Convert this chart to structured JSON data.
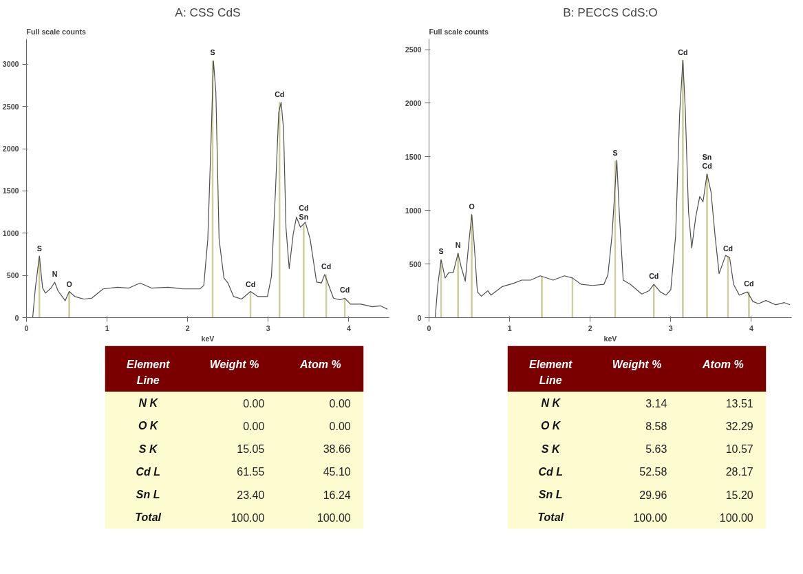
{
  "chart_data": [
    {
      "type": "line",
      "title": "A: CSS CdS",
      "ylabel": "Full scale counts",
      "xlabel": "keV",
      "xlim": [
        0,
        4.5
      ],
      "ylim": [
        0,
        3300
      ],
      "xticks": [
        0,
        1,
        2,
        3,
        4
      ],
      "yticks": [
        0,
        500,
        1000,
        1500,
        2000,
        2500,
        3000
      ],
      "grid": false,
      "series": [
        {
          "type": "bar",
          "color": "#cccc99",
          "x": [
            0.16,
            0.53,
            2.31,
            2.78,
            3.14,
            3.44,
            3.72,
            3.95
          ],
          "values": [
            720,
            300,
            3040,
            300,
            2550,
            1100,
            510,
            230
          ]
        },
        {
          "type": "line",
          "color": "#4d4d4d",
          "x": [
            0,
            0.077,
            0.11,
            0.16,
            0.2,
            0.235,
            0.305,
            0.35,
            0.39,
            0.48,
            0.53,
            0.6,
            0.71,
            0.81,
            0.95,
            1.13,
            1.27,
            1.41,
            1.55,
            1.76,
            1.94,
            2.15,
            2.2,
            2.25,
            2.29,
            2.32,
            2.35,
            2.39,
            2.45,
            2.5,
            2.57,
            2.67,
            2.78,
            2.87,
            2.99,
            3.04,
            3.09,
            3.13,
            3.16,
            3.19,
            3.22,
            3.26,
            3.31,
            3.35,
            3.4,
            3.46,
            3.52,
            3.6,
            3.66,
            3.7,
            3.74,
            3.81,
            3.89,
            3.95,
            4.02,
            4.15,
            4.29,
            4.39,
            4.48
          ],
          "values": [
            0,
            0,
            350,
            730,
            350,
            290,
            350,
            420,
            320,
            200,
            310,
            250,
            220,
            230,
            340,
            360,
            350,
            410,
            350,
            360,
            340,
            340,
            380,
            930,
            2090,
            3040,
            2670,
            930,
            470,
            410,
            250,
            220,
            310,
            250,
            250,
            490,
            1510,
            2430,
            2550,
            2230,
            1070,
            580,
            990,
            1190,
            1070,
            1130,
            930,
            420,
            410,
            510,
            410,
            230,
            210,
            230,
            160,
            160,
            130,
            140,
            100
          ]
        }
      ],
      "annotations": [
        {
          "text": "S",
          "x": 0.16,
          "y": 720
        },
        {
          "text": "N",
          "x": 0.35,
          "y": 420
        },
        {
          "text": "O",
          "x": 0.53,
          "y": 300
        },
        {
          "text": "S",
          "x": 2.31,
          "y": 3040
        },
        {
          "text": "Cd",
          "x": 2.78,
          "y": 300
        },
        {
          "text": "Cd",
          "x": 3.14,
          "y": 2550
        },
        {
          "text": "Cd",
          "x": 3.44,
          "y": 1100
        },
        {
          "text": "Sn",
          "x": 3.44,
          "y": 1100
        },
        {
          "text": "Cd",
          "x": 3.72,
          "y": 510
        },
        {
          "text": "Cd",
          "x": 3.95,
          "y": 230
        }
      ]
    },
    {
      "type": "other",
      "categories": [
        "N K",
        "O K",
        "S K",
        "Cd L",
        "Sn L",
        "Total"
      ],
      "series": [
        {
          "name": "Weight %",
          "values": [
            0.0,
            0.0,
            15.05,
            61.55,
            23.4,
            100.0
          ],
          "value_labels": [
            "0.00",
            "0.00",
            "15.05",
            "61.55",
            "23.40",
            "100.00"
          ]
        },
        {
          "name": "Atom %",
          "values": [
            0.0,
            0.0,
            38.66,
            45.1,
            16.24,
            100.0
          ],
          "value_labels": [
            "0.00",
            "0.00",
            "38.66",
            "45.10",
            "16.24",
            "100.00"
          ]
        }
      ],
      "annotations": [
        "Element Line"
      ]
    },
    {
      "type": "line",
      "title": "B: PECCS CdS:O",
      "ylabel": "Full scale counts",
      "xlabel": "keV",
      "xlim": [
        0,
        4.5
      ],
      "ylim": [
        0,
        2600
      ],
      "xticks": [
        0,
        1,
        2,
        3,
        4
      ],
      "yticks": [
        0,
        500,
        1000,
        1500,
        2000,
        2500
      ],
      "grid": false,
      "series": [
        {
          "type": "bar",
          "color": "#cccc99",
          "x": [
            0.15,
            0.36,
            0.53,
            1.4,
            1.78,
            2.31,
            2.79,
            3.15,
            3.45,
            3.71,
            3.97
          ],
          "values": [
            540,
            600,
            960,
            380,
            370,
            1460,
            310,
            2400,
            1340,
            570,
            240
          ]
        },
        {
          "type": "line",
          "color": "#4d4d4d",
          "x": [
            0,
            0.077,
            0.11,
            0.15,
            0.2,
            0.245,
            0.3,
            0.36,
            0.4,
            0.45,
            0.49,
            0.53,
            0.56,
            0.6,
            0.65,
            0.73,
            0.77,
            0.91,
            1.05,
            1.15,
            1.26,
            1.38,
            1.54,
            1.68,
            1.78,
            1.89,
            2.03,
            2.17,
            2.22,
            2.27,
            2.33,
            2.36,
            2.41,
            2.5,
            2.64,
            2.73,
            2.79,
            2.87,
            2.94,
            3.0,
            3.06,
            3.11,
            3.15,
            3.18,
            3.22,
            3.26,
            3.31,
            3.36,
            3.4,
            3.45,
            3.5,
            3.55,
            3.6,
            3.68,
            3.73,
            3.78,
            3.85,
            3.95,
            4.02,
            4.09,
            4.18,
            4.3,
            4.41,
            4.48
          ],
          "values": [
            0,
            0,
            310,
            540,
            370,
            420,
            420,
            600,
            470,
            340,
            670,
            960,
            690,
            240,
            200,
            250,
            210,
            290,
            320,
            350,
            350,
            390,
            350,
            390,
            370,
            310,
            300,
            310,
            400,
            760,
            1470,
            990,
            350,
            310,
            220,
            250,
            310,
            240,
            210,
            260,
            760,
            1900,
            2400,
            1940,
            990,
            650,
            940,
            1130,
            1080,
            1340,
            1170,
            760,
            410,
            580,
            560,
            310,
            210,
            240,
            150,
            130,
            160,
            120,
            140,
            120
          ]
        }
      ],
      "annotations": [
        {
          "text": "S",
          "x": 0.15,
          "y": 540
        },
        {
          "text": "N",
          "x": 0.36,
          "y": 600
        },
        {
          "text": "O",
          "x": 0.53,
          "y": 960
        },
        {
          "text": "S",
          "x": 2.31,
          "y": 1460
        },
        {
          "text": "Cd",
          "x": 2.79,
          "y": 310
        },
        {
          "text": "Cd",
          "x": 3.15,
          "y": 2400
        },
        {
          "text": "Sn",
          "x": 3.45,
          "y": 1340
        },
        {
          "text": "Cd",
          "x": 3.45,
          "y": 1340
        },
        {
          "text": "Cd",
          "x": 3.71,
          "y": 570
        },
        {
          "text": "Cd",
          "x": 3.97,
          "y": 240
        }
      ]
    },
    {
      "type": "other",
      "categories": [
        "N K",
        "O K",
        "S K",
        "Cd L",
        "Sn L",
        "Total"
      ],
      "series": [
        {
          "name": "Weight %",
          "values": [
            3.14,
            8.58,
            5.63,
            52.58,
            29.96,
            100.0
          ],
          "value_labels": [
            "3.14",
            "8.58",
            "5.63",
            "52.58",
            "29.96",
            "100.00"
          ]
        },
        {
          "name": "Atom %",
          "values": [
            13.51,
            32.29,
            10.57,
            28.17,
            15.2,
            100.0
          ],
          "value_labels": [
            "13.51",
            "32.29",
            "10.57",
            "28.17",
            "15.20",
            "100.00"
          ]
        }
      ],
      "annotations": [
        "Element Line"
      ]
    }
  ]
}
